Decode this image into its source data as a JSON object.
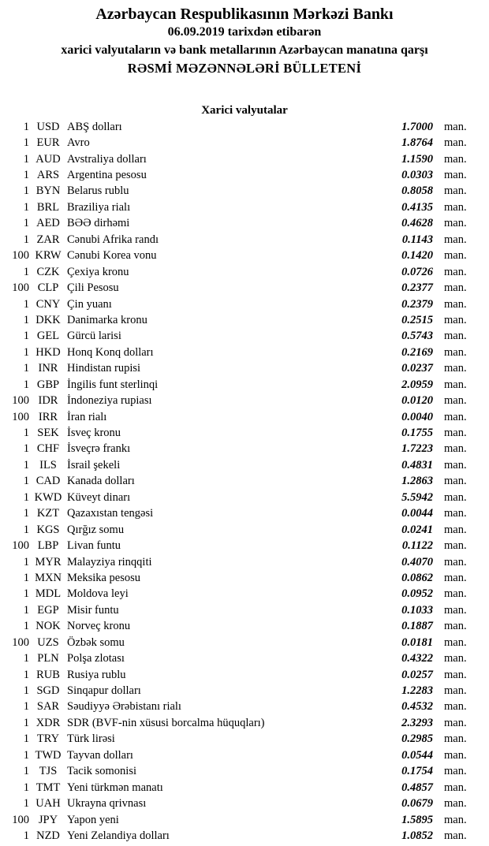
{
  "header": {
    "bank_name": "Azərbaycan Respublikasının Mərkəzi Bankı",
    "date_line": "06.09.2019 tarixdən etibarən",
    "subtitle_line": "xarici valyutaların və bank metallarının Azərbaycan manatına qarşı",
    "bulletin_title": "RƏSMİ MƏZƏNNƏLƏRİ BÜLLETENİ"
  },
  "section": {
    "title": "Xarici valyutalar"
  },
  "unit_label": "man.",
  "rates": [
    {
      "qty": "1",
      "code": "USD",
      "name": "ABŞ dolları",
      "rate": "1.7000"
    },
    {
      "qty": "1",
      "code": "EUR",
      "name": "Avro",
      "rate": "1.8764"
    },
    {
      "qty": "1",
      "code": "AUD",
      "name": "Avstraliya dolları",
      "rate": "1.1590"
    },
    {
      "qty": "1",
      "code": "ARS",
      "name": "Argentina pesosu",
      "rate": "0.0303"
    },
    {
      "qty": "1",
      "code": "BYN",
      "name": "Belarus rublu",
      "rate": "0.8058"
    },
    {
      "qty": "1",
      "code": "BRL",
      "name": "Braziliya rialı",
      "rate": "0.4135"
    },
    {
      "qty": "1",
      "code": "AED",
      "name": "BƏƏ dirhəmi",
      "rate": "0.4628"
    },
    {
      "qty": "1",
      "code": "ZAR",
      "name": "Cənubi Afrika randı",
      "rate": "0.1143"
    },
    {
      "qty": "100",
      "code": "KRW",
      "name": "Cənubi Korea vonu",
      "rate": "0.1420"
    },
    {
      "qty": "1",
      "code": "CZK",
      "name": "Çexiya kronu",
      "rate": "0.0726"
    },
    {
      "qty": "100",
      "code": "CLP",
      "name": "Çili Pesosu",
      "rate": "0.2377"
    },
    {
      "qty": "1",
      "code": "CNY",
      "name": "Çin yuanı",
      "rate": "0.2379"
    },
    {
      "qty": "1",
      "code": "DKK",
      "name": "Danimarka kronu",
      "rate": "0.2515"
    },
    {
      "qty": "1",
      "code": "GEL",
      "name": "Gürcü larisi",
      "rate": "0.5743"
    },
    {
      "qty": "1",
      "code": "HKD",
      "name": "Honq Konq dolları",
      "rate": "0.2169"
    },
    {
      "qty": "1",
      "code": "INR",
      "name": "Hindistan rupisi",
      "rate": "0.0237"
    },
    {
      "qty": "1",
      "code": "GBP",
      "name": "İngilis funt sterlinqi",
      "rate": "2.0959"
    },
    {
      "qty": "100",
      "code": "IDR",
      "name": "İndoneziya rupiası",
      "rate": "0.0120"
    },
    {
      "qty": "100",
      "code": "IRR",
      "name": "İran rialı",
      "rate": "0.0040"
    },
    {
      "qty": "1",
      "code": "SEK",
      "name": "İsveç kronu",
      "rate": "0.1755"
    },
    {
      "qty": "1",
      "code": "CHF",
      "name": "İsveçrə frankı",
      "rate": "1.7223"
    },
    {
      "qty": "1",
      "code": "ILS",
      "name": "İsrail şekeli",
      "rate": "0.4831"
    },
    {
      "qty": "1",
      "code": "CAD",
      "name": "Kanada dolları",
      "rate": "1.2863"
    },
    {
      "qty": "1",
      "code": "KWD",
      "name": "Küveyt dinarı",
      "rate": "5.5942"
    },
    {
      "qty": "1",
      "code": "KZT",
      "name": "Qazaxıstan tengəsi",
      "rate": "0.0044"
    },
    {
      "qty": "1",
      "code": "KGS",
      "name": "Qırğız somu",
      "rate": "0.0241"
    },
    {
      "qty": "100",
      "code": "LBP",
      "name": "Livan funtu",
      "rate": "0.1122"
    },
    {
      "qty": "1",
      "code": "MYR",
      "name": "Malayziya rinqqiti",
      "rate": "0.4070"
    },
    {
      "qty": "1",
      "code": "MXN",
      "name": "Meksika pesosu",
      "rate": "0.0862"
    },
    {
      "qty": "1",
      "code": "MDL",
      "name": "Moldova leyi",
      "rate": "0.0952"
    },
    {
      "qty": "1",
      "code": "EGP",
      "name": "Misir funtu",
      "rate": "0.1033"
    },
    {
      "qty": "1",
      "code": "NOK",
      "name": "Norveç kronu",
      "rate": "0.1887"
    },
    {
      "qty": "100",
      "code": "UZS",
      "name": "Özbək somu",
      "rate": "0.0181"
    },
    {
      "qty": "1",
      "code": "PLN",
      "name": "Polşa zlotası",
      "rate": "0.4322"
    },
    {
      "qty": "1",
      "code": "RUB",
      "name": "Rusiya rublu",
      "rate": "0.0257"
    },
    {
      "qty": "1",
      "code": "SGD",
      "name": "Sinqapur dolları",
      "rate": "1.2283"
    },
    {
      "qty": "1",
      "code": "SAR",
      "name": "Səudiyyə Ərəbistanı rialı",
      "rate": "0.4532"
    },
    {
      "qty": "1",
      "code": "XDR",
      "name": "SDR (BVF-nin xüsusi borcalma hüquqları)",
      "rate": "2.3293"
    },
    {
      "qty": "1",
      "code": "TRY",
      "name": "Türk lirəsi",
      "rate": "0.2985"
    },
    {
      "qty": "1",
      "code": "TWD",
      "name": "Tayvan dolları",
      "rate": "0.0544"
    },
    {
      "qty": "1",
      "code": "TJS",
      "name": "Tacik somonisi",
      "rate": "0.1754"
    },
    {
      "qty": "1",
      "code": "TMT",
      "name": "Yeni türkmən manatı",
      "rate": "0.4857"
    },
    {
      "qty": "1",
      "code": "UAH",
      "name": "Ukrayna qrivnası",
      "rate": "0.0679"
    },
    {
      "qty": "100",
      "code": "JPY",
      "name": "Yapon yeni",
      "rate": "1.5895"
    },
    {
      "qty": "1",
      "code": "NZD",
      "name": "Yeni Zelandiya dolları",
      "rate": "1.0852"
    }
  ]
}
